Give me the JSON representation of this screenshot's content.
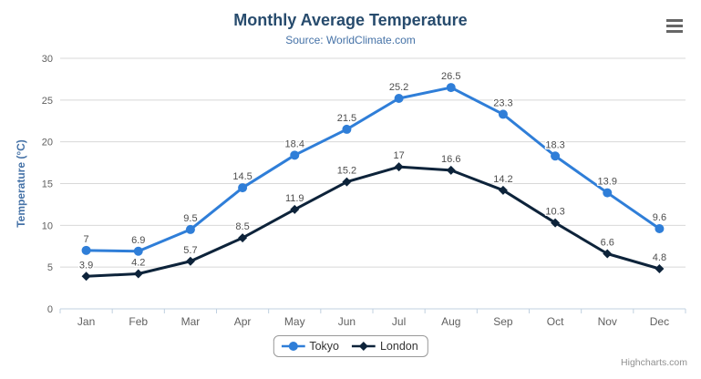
{
  "title": "Monthly Average Temperature",
  "subtitle": "Source: WorldClimate.com",
  "credits": "Highcharts.com",
  "theme": {
    "title_color": "#274b6d",
    "subtitle_color": "#4572a7",
    "axis_title_color": "#4572a7",
    "tick_label_color": "#606060",
    "grid_color": "#d8d8d8",
    "axis_line_color": "#c0d0e0",
    "data_label_color": "#4d4d4d",
    "legend_border_color": "#999999",
    "menu_icon_color": "#666666",
    "credits_color": "#909090"
  },
  "chart_data": {
    "type": "line",
    "title": "Monthly Average Temperature",
    "subtitle": "Source: WorldClimate.com",
    "categories": [
      "Jan",
      "Feb",
      "Mar",
      "Apr",
      "May",
      "Jun",
      "Jul",
      "Aug",
      "Sep",
      "Oct",
      "Nov",
      "Dec"
    ],
    "series": [
      {
        "name": "Tokyo",
        "color": "#2f7ed8",
        "marker": "circle",
        "values": [
          7,
          6.9,
          9.5,
          14.5,
          18.4,
          21.5,
          25.2,
          26.5,
          23.3,
          18.3,
          13.9,
          9.6
        ]
      },
      {
        "name": "London",
        "color": "#0d233a",
        "marker": "diamond",
        "values": [
          3.9,
          4.2,
          5.7,
          8.5,
          11.9,
          15.2,
          17,
          16.6,
          14.2,
          10.3,
          6.6,
          4.8
        ]
      }
    ],
    "xlabel": "",
    "ylabel": "Temperature (°C)",
    "ylim": [
      0,
      30
    ],
    "yticks": [
      0,
      5,
      10,
      15,
      20,
      25,
      30
    ],
    "grid": true,
    "data_labels": true,
    "legend_position": "bottom-center"
  }
}
